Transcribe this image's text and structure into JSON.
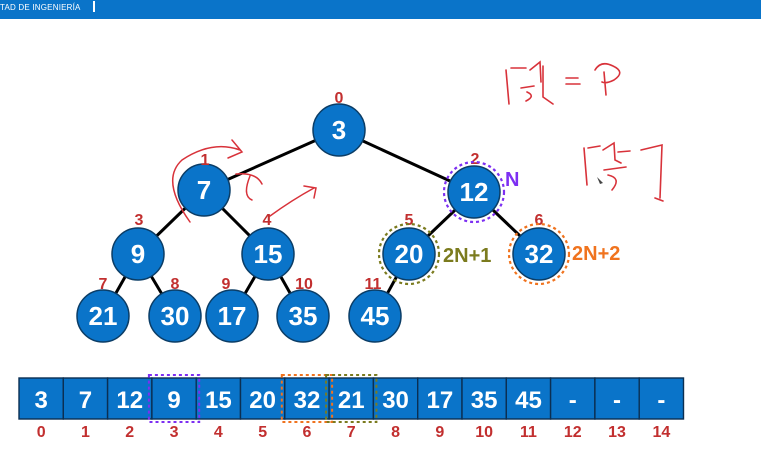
{
  "header": {
    "title": "TAD DE INGENIERÍA"
  },
  "colors": {
    "node_fill": "#0a74c9",
    "node_stroke": "#0b3d66",
    "index_text": "#c22f2f",
    "purple": "#7d2ff2",
    "olive": "#7b7b1e",
    "orange": "#f0731e",
    "handwriting": "#d8323a"
  },
  "tree": {
    "nodes": [
      {
        "i": 0,
        "value": "3",
        "index": "0"
      },
      {
        "i": 1,
        "value": "7",
        "index": "1"
      },
      {
        "i": 2,
        "value": "12",
        "index": "2"
      },
      {
        "i": 3,
        "value": "9",
        "index": "3"
      },
      {
        "i": 4,
        "value": "15",
        "index": "4"
      },
      {
        "i": 5,
        "value": "20",
        "index": "5"
      },
      {
        "i": 6,
        "value": "32",
        "index": "6"
      },
      {
        "i": 7,
        "value": "21",
        "index": "7"
      },
      {
        "i": 8,
        "value": "30",
        "index": "8"
      },
      {
        "i": 9,
        "value": "17",
        "index": "9"
      },
      {
        "i": 10,
        "value": "35",
        "index": "10"
      },
      {
        "i": 11,
        "value": "45",
        "index": "11"
      }
    ],
    "annotations": {
      "parent": "N",
      "left_child": "2N+1",
      "right_child": "2N+2"
    }
  },
  "array": {
    "cells": [
      "3",
      "7",
      "12",
      "9",
      "15",
      "20",
      "32",
      "21",
      "30",
      "17",
      "35",
      "45",
      "-",
      "-",
      "-"
    ],
    "indices": [
      "0",
      "1",
      "2",
      "3",
      "4",
      "5",
      "6",
      "7",
      "8",
      "9",
      "10",
      "11",
      "12",
      "13",
      "14"
    ]
  }
}
